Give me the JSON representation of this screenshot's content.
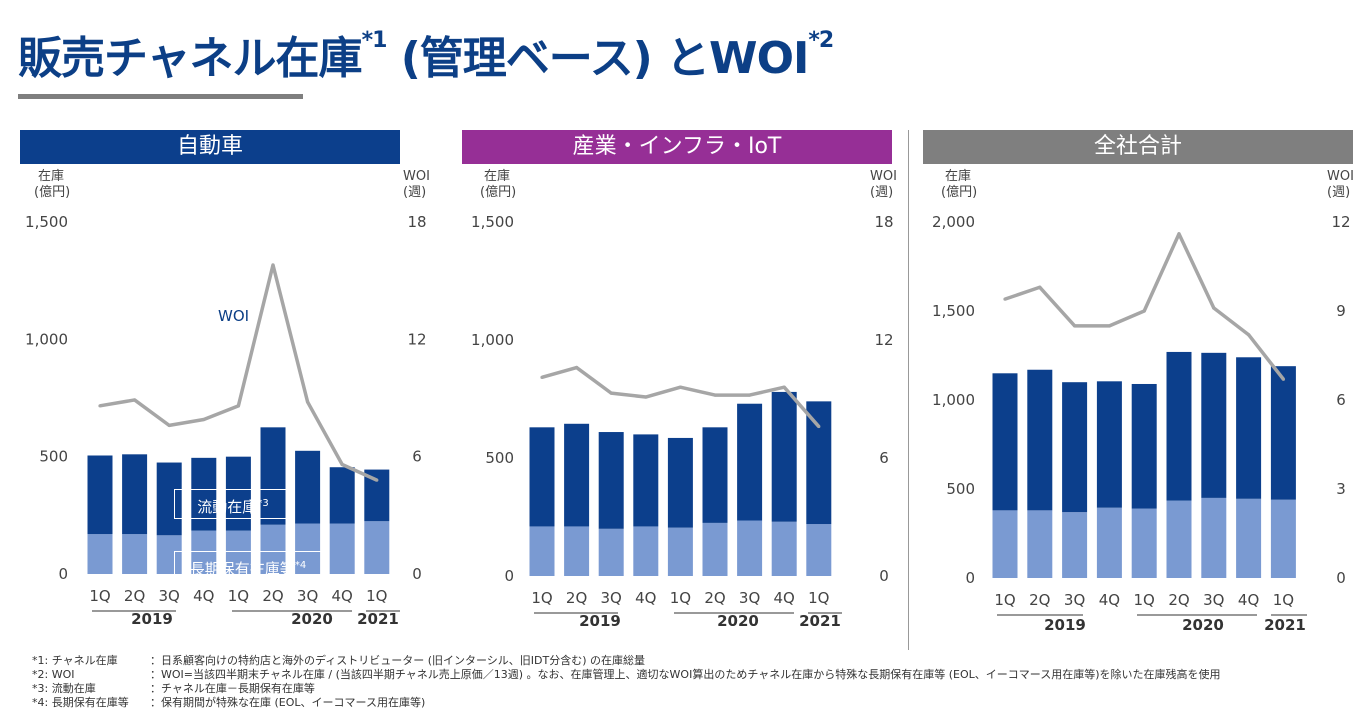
{
  "title": {
    "main": "販売チャネル在庫",
    "sup1": "*1",
    "mid": " (管理ベース) とWOI",
    "sup2": "*2"
  },
  "colors": {
    "flow": "#0c3f8c",
    "long": "#7a9ad2",
    "woi": "#a6a6a6",
    "auto_header": "#0c3f8c",
    "iiot_header": "#962f96",
    "total_header": "#7f7f7f"
  },
  "unit_left": [
    "在庫",
    "(億円)"
  ],
  "unit_right": [
    "WOI",
    "(週)"
  ],
  "callouts": {
    "flow": "流動在庫",
    "flow_sup": "*3",
    "long": "長期保有在庫等",
    "long_sup": "*4",
    "woi": "WOI"
  },
  "chart_data": [
    {
      "type": "bar",
      "title": "自動車",
      "categories": [
        "1Q",
        "2Q",
        "3Q",
        "4Q",
        "1Q",
        "2Q",
        "3Q",
        "4Q",
        "1Q"
      ],
      "years": [
        "2019",
        "2020",
        "2021"
      ],
      "ylim": [
        0,
        1500
      ],
      "yticks": [
        "0",
        "500",
        "1,000",
        "1,500"
      ],
      "y2lim": [
        0,
        18
      ],
      "y2ticks": [
        "0",
        "6",
        "12",
        "18"
      ],
      "series": [
        {
          "name": "長期保有在庫等",
          "values": [
            170,
            170,
            165,
            185,
            185,
            210,
            215,
            215,
            225
          ]
        },
        {
          "name": "流動在庫",
          "values": [
            335,
            340,
            310,
            310,
            315,
            415,
            310,
            240,
            220
          ]
        },
        {
          "name": "WOI",
          "axis": "right",
          "values": [
            8.6,
            8.9,
            7.6,
            7.9,
            8.6,
            15.8,
            8.8,
            5.6,
            4.8
          ]
        }
      ]
    },
    {
      "type": "bar",
      "title": "産業・インフラ・IoT",
      "categories": [
        "1Q",
        "2Q",
        "3Q",
        "4Q",
        "1Q",
        "2Q",
        "3Q",
        "4Q",
        "1Q"
      ],
      "years": [
        "2019",
        "2020",
        "2021"
      ],
      "ylim": [
        0,
        1500
      ],
      "yticks": [
        "0",
        "500",
        "1,000",
        "1,500"
      ],
      "y2lim": [
        0,
        18
      ],
      "y2ticks": [
        "0",
        "6",
        "12",
        "18"
      ],
      "series": [
        {
          "name": "長期保有在庫等",
          "values": [
            210,
            210,
            200,
            210,
            205,
            225,
            235,
            230,
            220
          ]
        },
        {
          "name": "流動在庫",
          "values": [
            420,
            435,
            410,
            390,
            380,
            405,
            495,
            550,
            520
          ]
        },
        {
          "name": "WOI",
          "axis": "right",
          "values": [
            10.1,
            10.6,
            9.3,
            9.1,
            9.6,
            9.2,
            9.2,
            9.6,
            7.6
          ]
        }
      ]
    },
    {
      "type": "bar",
      "title": "全社合計",
      "categories": [
        "1Q",
        "2Q",
        "3Q",
        "4Q",
        "1Q",
        "2Q",
        "3Q",
        "4Q",
        "1Q"
      ],
      "years": [
        "2019",
        "2020",
        "2021"
      ],
      "ylim": [
        0,
        2000
      ],
      "yticks": [
        "0",
        "500",
        "1,000",
        "1,500",
        "2,000"
      ],
      "y2lim": [
        0,
        12
      ],
      "y2ticks": [
        "0",
        "3",
        "6",
        "9",
        "12"
      ],
      "series": [
        {
          "name": "長期保有在庫等",
          "values": [
            380,
            380,
            370,
            395,
            390,
            435,
            450,
            445,
            440
          ]
        },
        {
          "name": "流動在庫",
          "values": [
            770,
            790,
            730,
            710,
            700,
            835,
            815,
            795,
            750
          ]
        },
        {
          "name": "WOI",
          "axis": "right",
          "values": [
            9.4,
            9.8,
            8.5,
            8.5,
            9.0,
            11.6,
            9.1,
            8.2,
            6.7
          ]
        }
      ]
    }
  ],
  "notes": [
    {
      "key": "*1: チャネル在庫",
      "text": "：日系顧客向けの特約店と海外のディストリビューター (旧インターシル、旧IDT分含む) の在庫総量"
    },
    {
      "key": "*2: WOI",
      "text": "：WOI=当該四半期末チャネル在庫 / (当該四半期チャネル売上原価／13週) 。なお、在庫管理上、適切なWOI算出のためチャネル在庫から特殊な長期保有在庫等 (EOL、イーコマース用在庫等)を除いた在庫残高を使用"
    },
    {
      "key": "*3: 流動在庫",
      "text": "：チャネル在庫－長期保有在庫等"
    },
    {
      "key": "*4: 長期保有在庫等",
      "text": "：保有期間が特殊な在庫 (EOL、イーコマース用在庫等)"
    }
  ]
}
